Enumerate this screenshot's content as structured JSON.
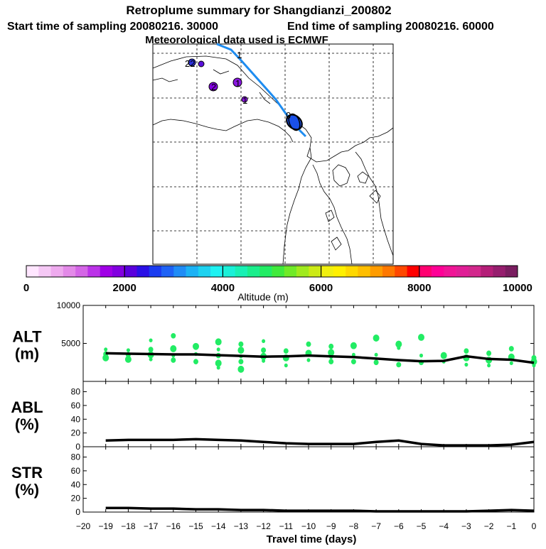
{
  "header": {
    "title": "Retroplume summary for Shangdianzi_200802",
    "start": "Start time of sampling 20080216. 30000",
    "end": "End time of sampling 20080216. 60000",
    "met": "Meteorological data used is ECMWF"
  },
  "map": {
    "labels": [
      "1",
      "22",
      "2",
      "1",
      "1",
      "0"
    ]
  },
  "colorbar": {
    "title": "Altitude (m)",
    "ticks": [
      "0",
      "2000",
      "4000",
      "6000",
      "8000",
      "10000"
    ],
    "colors": [
      "#ffe6ff",
      "#f5c8f5",
      "#eeaaee",
      "#e38ae8",
      "#d466e6",
      "#bb33e8",
      "#a000e6",
      "#8200e0",
      "#5a00dc",
      "#2a10e6",
      "#1a3cf0",
      "#1e62f5",
      "#1f8cf6",
      "#1cb2f5",
      "#1ed2f0",
      "#1ef2f2",
      "#1af0d8",
      "#18f0b4",
      "#1aee8c",
      "#22ec64",
      "#40ea3c",
      "#70ea28",
      "#a0ea1e",
      "#ccea16",
      "#f0f010",
      "#fff000",
      "#ffd800",
      "#ffbe00",
      "#ff9c00",
      "#ff7800",
      "#ff4800",
      "#ff0000",
      "#ff0070",
      "#ff0096",
      "#f01496",
      "#e01e96",
      "#d2288c",
      "#b41e78",
      "#961e6e",
      "#7a1e60"
    ]
  },
  "chart_data": [
    {
      "type": "scatter",
      "name": "ALT",
      "label_top": "ALT",
      "label_bottom": "(m)",
      "ylim": [
        0,
        10000
      ],
      "yticks": [
        "10000",
        "5000"
      ],
      "xlim": [
        -20,
        0
      ],
      "x": [
        -19,
        -18,
        -17,
        -16,
        -15,
        -14,
        -13,
        -12,
        -11,
        -10,
        -9,
        -8,
        -7,
        -6,
        -5,
        -4,
        -3,
        -2,
        -1,
        0
      ],
      "mean": [
        3700,
        3650,
        3600,
        3550,
        3550,
        3450,
        3350,
        3250,
        3300,
        3400,
        3300,
        3200,
        3000,
        2800,
        2650,
        2700,
        3300,
        2950,
        2850,
        2450
      ],
      "points": [
        [
          -19,
          4200
        ],
        [
          -19,
          3600
        ],
        [
          -19,
          3100
        ],
        [
          -18,
          4100
        ],
        [
          -18,
          3500
        ],
        [
          -18,
          2900
        ],
        [
          -17,
          5400
        ],
        [
          -17,
          4200
        ],
        [
          -17,
          3500
        ],
        [
          -17,
          2900
        ],
        [
          -16,
          6000
        ],
        [
          -16,
          4300
        ],
        [
          -16,
          3400
        ],
        [
          -16,
          2800
        ],
        [
          -15,
          4600
        ],
        [
          -15,
          3600
        ],
        [
          -15,
          2600
        ],
        [
          -14,
          5200
        ],
        [
          -14,
          4200
        ],
        [
          -14,
          3400
        ],
        [
          -14,
          2400
        ],
        [
          -14,
          1800
        ],
        [
          -13,
          4900
        ],
        [
          -13,
          4100
        ],
        [
          -13,
          3300
        ],
        [
          -13,
          2600
        ],
        [
          -13,
          1600
        ],
        [
          -12,
          5300
        ],
        [
          -12,
          4100
        ],
        [
          -12,
          3300
        ],
        [
          -12,
          2700
        ],
        [
          -11,
          4000
        ],
        [
          -11,
          3100
        ],
        [
          -11,
          2100
        ],
        [
          -10,
          4900
        ],
        [
          -10,
          3700
        ],
        [
          -10,
          2800
        ],
        [
          -9,
          4600
        ],
        [
          -9,
          3800
        ],
        [
          -9,
          3200
        ],
        [
          -9,
          2600
        ],
        [
          -8,
          4700
        ],
        [
          -8,
          3500
        ],
        [
          -8,
          2600
        ],
        [
          -7,
          5700
        ],
        [
          -7,
          3500
        ],
        [
          -7,
          2500
        ],
        [
          -6,
          4900
        ],
        [
          -6,
          4400
        ],
        [
          -6,
          2200
        ],
        [
          -5,
          5800
        ],
        [
          -5,
          3400
        ],
        [
          -5,
          2500
        ],
        [
          -4,
          3400
        ],
        [
          -4,
          2600
        ],
        [
          -3,
          4000
        ],
        [
          -3,
          3100
        ],
        [
          -3,
          2200
        ],
        [
          -2,
          3700
        ],
        [
          -2,
          2800
        ],
        [
          -2,
          2100
        ],
        [
          -1,
          4300
        ],
        [
          -1,
          3200
        ],
        [
          -1,
          2400
        ],
        [
          0,
          3100
        ],
        [
          0,
          2600
        ],
        [
          0,
          2100
        ]
      ]
    },
    {
      "type": "line",
      "name": "ABL",
      "label_top": "ABL",
      "label_bottom": "(%)",
      "ylim": [
        0,
        95
      ],
      "yticks": [
        "80",
        "60",
        "40",
        "20",
        "0"
      ],
      "x": [
        -19,
        -18,
        -17,
        -16,
        -15,
        -14,
        -13,
        -12,
        -11,
        -10,
        -9,
        -8,
        -7,
        -6,
        -5,
        -4,
        -3,
        -2,
        -1,
        0
      ],
      "values": [
        9,
        10,
        10,
        10,
        11,
        10,
        9,
        7,
        5,
        4,
        4,
        4,
        7,
        9,
        4,
        2,
        2,
        2,
        3,
        7
      ]
    },
    {
      "type": "line",
      "name": "STR",
      "label_top": "STR",
      "label_bottom": "(%)",
      "ylim": [
        0,
        95
      ],
      "yticks": [
        "80",
        "60",
        "40",
        "20",
        "0"
      ],
      "x": [
        -19,
        -18,
        -17,
        -16,
        -15,
        -14,
        -13,
        -12,
        -11,
        -10,
        -9,
        -8,
        -7,
        -6,
        -5,
        -4,
        -3,
        -2,
        -1,
        0
      ],
      "values": [
        6,
        6,
        5,
        5,
        4,
        4,
        3,
        3,
        2,
        2,
        2,
        2,
        1,
        1,
        1,
        1,
        1,
        2,
        3,
        2
      ]
    }
  ],
  "xaxis": {
    "title": "Travel time (days)",
    "ticks": [
      "−20",
      "−19",
      "−18",
      "−17",
      "−16",
      "−15",
      "−14",
      "−13",
      "−12",
      "−11",
      "−10",
      "−9",
      "−8",
      "−7",
      "−6",
      "−5",
      "−4",
      "−3",
      "−2",
      "−1",
      "0"
    ]
  }
}
